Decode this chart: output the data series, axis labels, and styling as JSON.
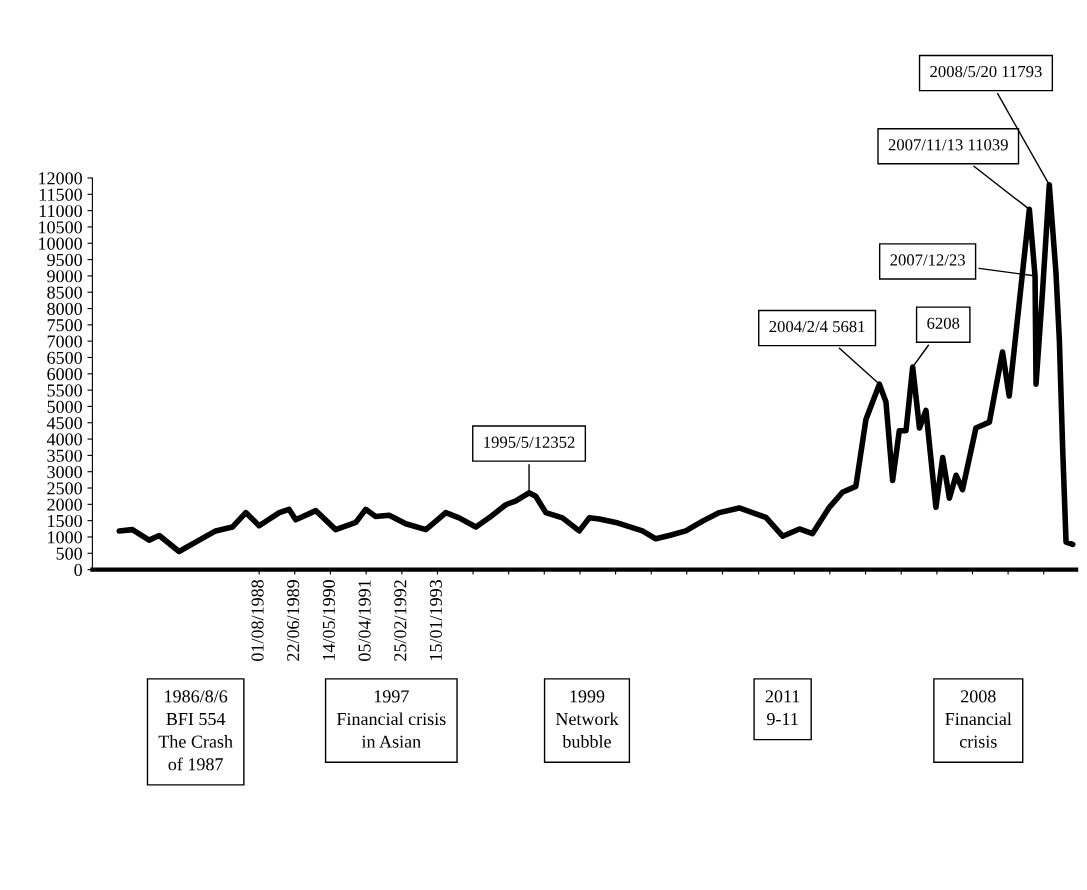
{
  "chart_data": {
    "type": "line",
    "x": [
      "1985-02",
      "1985-06",
      "1985-11",
      "1986-02",
      "1986-08",
      "1987-02",
      "1987-07",
      "1987-12",
      "1988-04",
      "1988-08",
      "1989-02",
      "1989-05",
      "1989-07",
      "1990-01",
      "1990-07",
      "1991-01",
      "1991-04",
      "1991-07",
      "1991-11",
      "1992-04",
      "1992-10",
      "1993-01",
      "1993-04",
      "1993-08",
      "1994-01",
      "1994-05",
      "1994-10",
      "1995-01",
      "1995-05",
      "1995-07",
      "1995-10",
      "1996-03",
      "1996-08",
      "1996-11",
      "1997-02",
      "1997-07",
      "1998-03",
      "1998-07",
      "1998-11",
      "1999-04",
      "1999-09",
      "2000-02",
      "2000-08",
      "2001-04",
      "2001-09",
      "2002-02",
      "2002-06",
      "2002-11",
      "2003-03",
      "2003-07",
      "2003-10",
      "2004-02",
      "2004-04",
      "2004-06",
      "2004-08",
      "2004-10",
      "2004-12",
      "2005-02",
      "2005-04",
      "2005-07",
      "2005-09",
      "2005-11",
      "2006-01",
      "2006-03",
      "2006-07",
      "2006-11",
      "2007-03",
      "2007-05",
      "2007-11",
      "2007-12-23",
      "2008-01",
      "2008-03",
      "2008-05",
      "2008-07",
      "2008-08",
      "2008-09",
      "2008-10",
      "2008-12"
    ],
    "series": [
      {
        "color": "#000000",
        "values": [
          1185,
          1225,
          904,
          1044,
          554,
          904,
          1185,
          1305,
          1747,
          1345,
          1747,
          1847,
          1526,
          1807,
          1225,
          1446,
          1847,
          1627,
          1667,
          1406,
          1225,
          1486,
          1747,
          1586,
          1305,
          1586,
          1988,
          2108,
          2352,
          2249,
          1747,
          1586,
          1185,
          1586,
          1550,
          1446,
          1185,
          944,
          1044,
          1185,
          1486,
          1747,
          1888,
          1600,
          1024,
          1245,
          1104,
          1908,
          2369,
          2550,
          4598,
          5681,
          5140,
          2731,
          4257,
          4257,
          6208,
          4337,
          4880,
          1908,
          3434,
          2189,
          2892,
          2450,
          4337,
          4518,
          6667,
          5321,
          11039,
          9000,
          5683,
          8554,
          11793,
          9096,
          7028,
          3614,
          843,
          774
        ]
      }
    ],
    "xlim": [
      "1984-06",
      "2009-01"
    ],
    "xticks": [
      {
        "value": "1988-08-01",
        "label": "01/08/1988"
      },
      {
        "value": "1989-06-22",
        "label": "22/06/1989"
      },
      {
        "value": "1990-05-14",
        "label": "14/05/1990"
      },
      {
        "value": "1991-04-05",
        "label": "05/04/1991"
      },
      {
        "value": "1992-02-25",
        "label": "25/02/1992"
      },
      {
        "value": "1993-01-15",
        "label": "15/01/1993"
      },
      {
        "value": "1993-12-06",
        "label": null
      },
      {
        "value": "1994-10-27",
        "label": null
      },
      {
        "value": "1995-09-17",
        "label": null
      },
      {
        "value": "1996-08-08",
        "label": null
      },
      {
        "value": "1997-06-29",
        "label": null
      },
      {
        "value": "1998-05-20",
        "label": null
      },
      {
        "value": "1999-04-10",
        "label": null
      },
      {
        "value": "2000-03-01",
        "label": null
      },
      {
        "value": "2001-01-25",
        "label": null
      },
      {
        "value": "2001-12-16",
        "label": null
      },
      {
        "value": "2002-11-06",
        "label": null
      },
      {
        "value": "2003-09-28",
        "label": null
      },
      {
        "value": "2004-08-18",
        "label": null
      },
      {
        "value": "2005-07-10",
        "label": null
      },
      {
        "value": "2006-05-31",
        "label": null
      },
      {
        "value": "2007-04-21",
        "label": null
      },
      {
        "value": "2008-03-11",
        "label": null
      }
    ],
    "ylim": [
      0,
      12000
    ],
    "yticks": [
      0,
      500,
      1000,
      1500,
      2000,
      2500,
      3000,
      3500,
      4000,
      4500,
      5000,
      5500,
      6000,
      6500,
      7000,
      7500,
      8000,
      8500,
      9000,
      9500,
      10000,
      10500,
      11000,
      11500,
      12000
    ],
    "grid": false,
    "marker": "none",
    "line_style": "solid",
    "annotations": [
      {
        "text": "1995/5/12352",
        "x": "1995-05",
        "y": 2352
      },
      {
        "text": "2004/2/4 5681",
        "x": "2004-02",
        "y": 5681
      },
      {
        "text": "6208",
        "x": "2004-12",
        "y": 6208
      },
      {
        "text": "2007/12/23",
        "x": "2007-12-23",
        "y": 9000
      },
      {
        "text": "2007/11/13 11039",
        "x": "2007-11",
        "y": 11039
      },
      {
        "text": "2008/5/20 11793",
        "x": "2008-05",
        "y": 11793
      },
      "1986/8/6\nBFI 554\nThe Crash\nof 1987",
      "1997\nFinancial crisis\nin Asian",
      "1999\nNetwork\nbubble",
      "2011\n9-11",
      "2008\nFinancial\ncrisis"
    ]
  }
}
